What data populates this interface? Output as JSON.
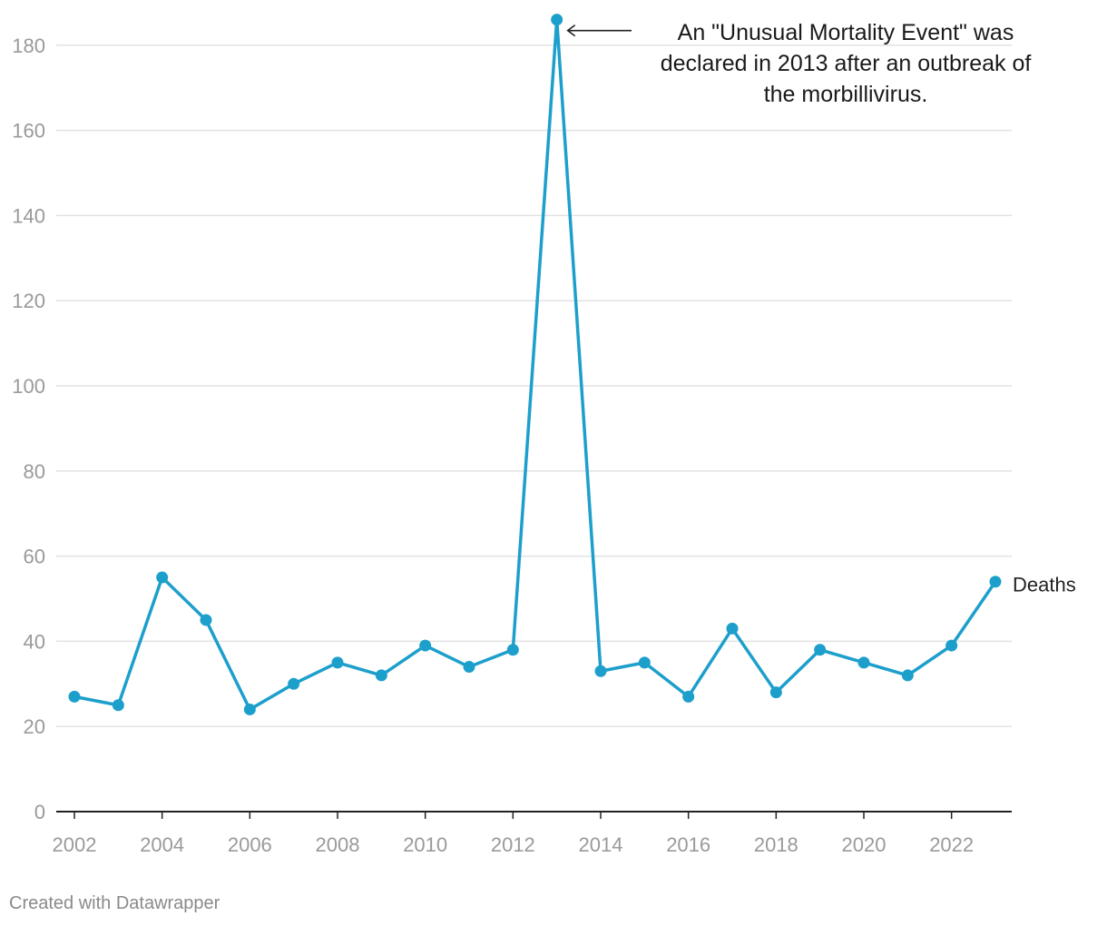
{
  "chart_data": {
    "type": "line",
    "title": "",
    "xlabel": "",
    "ylabel": "",
    "x": [
      2002,
      2003,
      2004,
      2005,
      2006,
      2007,
      2008,
      2009,
      2010,
      2011,
      2012,
      2013,
      2014,
      2015,
      2016,
      2017,
      2018,
      2019,
      2020,
      2021,
      2022,
      2023
    ],
    "series": [
      {
        "name": "Deaths",
        "color": "#1d9fcc",
        "values": [
          27,
          25,
          55,
          45,
          24,
          30,
          35,
          32,
          39,
          34,
          38,
          186,
          33,
          35,
          27,
          43,
          28,
          38,
          35,
          32,
          39,
          54
        ]
      }
    ],
    "xlim": [
      2002,
      2023
    ],
    "ylim": [
      0,
      186
    ],
    "x_ticks": [
      "2002",
      "2004",
      "2006",
      "2008",
      "2010",
      "2012",
      "2014",
      "2016",
      "2018",
      "2020",
      "2022"
    ],
    "y_ticks": [
      "0",
      "20",
      "40",
      "60",
      "80",
      "100",
      "120",
      "140",
      "160",
      "180"
    ],
    "grid": true,
    "legend": "inline-end-label",
    "annotation": {
      "x": 2013,
      "y": 186,
      "lines": [
        "An \"Unusual Mortality Event\" was",
        "declared in 2013 after an outbreak of",
        "the morbillivirus."
      ]
    }
  },
  "footer": {
    "credit": "Created with Datawrapper"
  }
}
